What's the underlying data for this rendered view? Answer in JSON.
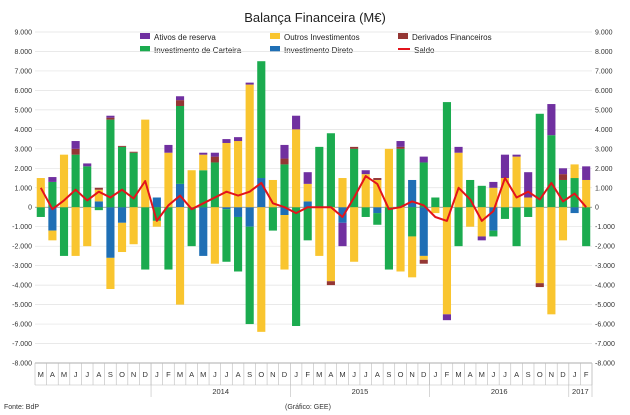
{
  "chart_data": {
    "type": "bar",
    "title": "Balança Financeira (M€)",
    "source": "Fonte: BdP",
    "credit": "(Gráfico: GEE)",
    "ylim": [
      -8000,
      9000
    ],
    "yticks": [
      "-8.000",
      "-7.000",
      "-6.000",
      "-5.000",
      "-4.000",
      "-3.000",
      "-2.000",
      "-1.000",
      "0",
      "1.000",
      "2.000",
      "3.000",
      "4.000",
      "5.000",
      "6.000",
      "7.000",
      "8.000",
      "9.000"
    ],
    "ytick_values": [
      -8000,
      -7000,
      -6000,
      -5000,
      -4000,
      -3000,
      -2000,
      -1000,
      0,
      1000,
      2000,
      3000,
      4000,
      5000,
      6000,
      7000,
      8000,
      9000
    ],
    "months": [
      "M",
      "A",
      "M",
      "J",
      "J",
      "A",
      "S",
      "O",
      "N",
      "D",
      "J",
      "F",
      "M",
      "A",
      "M",
      "J",
      "J",
      "A",
      "S",
      "O",
      "N",
      "D",
      "J",
      "F",
      "M",
      "A",
      "M",
      "J",
      "J",
      "A",
      "S",
      "O",
      "N",
      "D",
      "J",
      "F",
      "M",
      "A",
      "M",
      "J",
      "J",
      "A",
      "S",
      "O",
      "N",
      "D",
      "J",
      "F"
    ],
    "years": [
      {
        "label": "2014",
        "start": 10,
        "end": 21
      },
      {
        "label": "2015",
        "start": 22,
        "end": 33
      },
      {
        "label": "2016",
        "start": 34,
        "end": 45
      },
      {
        "label": "2017",
        "start": 46,
        "end": 47
      }
    ],
    "series": [
      {
        "name": "Ativos de reserva",
        "color": "#7030a0"
      },
      {
        "name": "Outros Investimentos",
        "color": "#f9c52f"
      },
      {
        "name": "Derivados Financeiros",
        "color": "#943634"
      },
      {
        "name": "Investimento de Carteira",
        "color": "#1bab4f"
      },
      {
        "name": "Investimento Direto",
        "color": "#1f6fb5"
      },
      {
        "name": "Saldo",
        "color": "#e3131b"
      }
    ],
    "data": [
      {
        "i": 0,
        "dir": 0,
        "carteira": -500,
        "outros": 1500,
        "deriv": 0,
        "reserva": 0,
        "saldo": 1000
      },
      {
        "i": 1,
        "dir": -1200,
        "carteira": 1300,
        "outros": -500,
        "deriv": 0,
        "reserva": 250,
        "saldo": -100
      },
      {
        "i": 2,
        "dir": 0,
        "carteira": -2500,
        "outros": 2700,
        "deriv": 0,
        "reserva": 0,
        "saldo": 350
      },
      {
        "i": 3,
        "dir": 0,
        "carteira": 2700,
        "outros": -2500,
        "deriv": 300,
        "reserva": 400,
        "saldo": 900
      },
      {
        "i": 4,
        "dir": 0,
        "carteira": 2100,
        "outros": -2000,
        "deriv": 0,
        "reserva": 150,
        "saldo": 350
      },
      {
        "i": 5,
        "dir": 300,
        "carteira": -150,
        "outros": 600,
        "deriv": 100,
        "reserva": 0,
        "saldo": 800
      },
      {
        "i": 6,
        "dir": -2600,
        "carteira": 4500,
        "outros": -1600,
        "deriv": 100,
        "reserva": 100,
        "saldo": 500
      },
      {
        "i": 7,
        "dir": -800,
        "carteira": 3100,
        "outros": -1500,
        "deriv": 50,
        "reserva": 0,
        "saldo": 900
      },
      {
        "i": 8,
        "dir": 0,
        "carteira": 2800,
        "outros": -1900,
        "deriv": 50,
        "reserva": 0,
        "saldo": 450
      },
      {
        "i": 9,
        "dir": 0,
        "carteira": -3200,
        "outros": 4500,
        "deriv": 0,
        "reserva": 0,
        "saldo": 1350
      },
      {
        "i": 10,
        "dir": 500,
        "carteira": -700,
        "outros": -300,
        "deriv": 0,
        "reserva": 0,
        "saldo": -700
      },
      {
        "i": 11,
        "dir": 0,
        "carteira": -3200,
        "outros": 2800,
        "deriv": 0,
        "reserva": 400,
        "saldo": 100
      },
      {
        "i": 12,
        "dir": 1200,
        "carteira": 4000,
        "outros": -5000,
        "deriv": 300,
        "reserva": 200,
        "saldo": 600
      },
      {
        "i": 13,
        "dir": 0,
        "carteira": -2000,
        "outros": 1900,
        "deriv": 0,
        "reserva": 0,
        "saldo": -100
      },
      {
        "i": 14,
        "dir": -2500,
        "carteira": 1900,
        "outros": 800,
        "deriv": 0,
        "reserva": 100,
        "saldo": 200
      },
      {
        "i": 15,
        "dir": 0,
        "carteira": 2300,
        "outros": -2900,
        "deriv": 300,
        "reserva": 200,
        "saldo": 500
      },
      {
        "i": 16,
        "dir": -100,
        "carteira": -2700,
        "outros": 3300,
        "deriv": 0,
        "reserva": 200,
        "saldo": 800
      },
      {
        "i": 17,
        "dir": -500,
        "carteira": -2800,
        "outros": 3400,
        "deriv": 0,
        "reserva": 200,
        "saldo": 600
      },
      {
        "i": 18,
        "dir": -1000,
        "carteira": -5000,
        "outros": 6300,
        "deriv": 0,
        "reserva": 100,
        "saldo": 800
      },
      {
        "i": 19,
        "dir": 1500,
        "carteira": 6000,
        "outros": -6400,
        "deriv": 0,
        "reserva": 0,
        "saldo": 1250
      },
      {
        "i": 20,
        "dir": 0,
        "carteira": -1200,
        "outros": 1400,
        "deriv": 0,
        "reserva": 0,
        "saldo": 200
      },
      {
        "i": 21,
        "dir": -400,
        "carteira": 2200,
        "outros": -2800,
        "deriv": 300,
        "reserva": 700,
        "saldo": 0
      },
      {
        "i": 22,
        "dir": 0,
        "carteira": -6100,
        "outros": 4000,
        "deriv": 0,
        "reserva": 700,
        "saldo": -300
      },
      {
        "i": 23,
        "dir": 300,
        "carteira": -1700,
        "outros": 900,
        "deriv": 0,
        "reserva": 600,
        "saldo": 0
      },
      {
        "i": 24,
        "dir": 0,
        "carteira": 3100,
        "outros": -2500,
        "deriv": 0,
        "reserva": 0,
        "saldo": 0
      },
      {
        "i": 25,
        "dir": 0,
        "carteira": 3800,
        "outros": -3800,
        "deriv": -200,
        "reserva": 0,
        "saldo": 0
      },
      {
        "i": 26,
        "dir": -800,
        "carteira": 0,
        "outros": 1500,
        "deriv": 0,
        "reserva": -1200,
        "saldo": -500
      },
      {
        "i": 27,
        "dir": 0,
        "carteira": 3000,
        "outros": -2800,
        "deriv": 100,
        "reserva": 0,
        "saldo": 500
      },
      {
        "i": 28,
        "dir": 0,
        "carteira": -500,
        "outros": 1700,
        "deriv": 0,
        "reserva": 200,
        "saldo": 1600
      },
      {
        "i": 29,
        "dir": -300,
        "carteira": -600,
        "outros": 1400,
        "deriv": 100,
        "reserva": 0,
        "saldo": 1200
      },
      {
        "i": 30,
        "dir": 0,
        "carteira": -3200,
        "outros": 3000,
        "deriv": 0,
        "reserva": 0,
        "saldo": -100
      },
      {
        "i": 31,
        "dir": 0,
        "carteira": 3000,
        "outros": -3300,
        "deriv": 100,
        "reserva": 300,
        "saldo": 0
      },
      {
        "i": 32,
        "dir": 1400,
        "carteira": -1500,
        "outros": -2100,
        "deriv": 0,
        "reserva": 0,
        "saldo": 300
      },
      {
        "i": 33,
        "dir": -2500,
        "carteira": 2300,
        "outros": -200,
        "deriv": -200,
        "reserva": 300,
        "saldo": 100
      },
      {
        "i": 34,
        "dir": 0,
        "carteira": 500,
        "outros": -300,
        "deriv": 0,
        "reserva": 0,
        "saldo": -500
      },
      {
        "i": 35,
        "dir": 0,
        "carteira": 5400,
        "outros": -5500,
        "deriv": 0,
        "reserva": -300,
        "saldo": -700
      },
      {
        "i": 36,
        "dir": 0,
        "carteira": -2000,
        "outros": 2800,
        "deriv": 0,
        "reserva": 300,
        "saldo": 1000
      },
      {
        "i": 37,
        "dir": 0,
        "carteira": 1400,
        "outros": -1000,
        "deriv": 0,
        "reserva": 0,
        "saldo": 400
      },
      {
        "i": 38,
        "dir": 0,
        "carteira": 1100,
        "outros": -1500,
        "deriv": 0,
        "reserva": -200,
        "saldo": -700
      },
      {
        "i": 39,
        "dir": -1200,
        "carteira": -300,
        "outros": 1000,
        "deriv": 0,
        "reserva": 300,
        "saldo": -200
      },
      {
        "i": 40,
        "dir": 0,
        "carteira": -600,
        "outros": 1500,
        "deriv": 0,
        "reserva": 1200,
        "saldo": 1500
      },
      {
        "i": 41,
        "dir": 0,
        "carteira": -2000,
        "outros": 2600,
        "deriv": 0,
        "reserva": 100,
        "saldo": 500
      },
      {
        "i": 42,
        "dir": 0,
        "carteira": -500,
        "outros": 500,
        "deriv": 0,
        "reserva": 1300,
        "saldo": 800
      },
      {
        "i": 43,
        "dir": 0,
        "carteira": 4800,
        "outros": -3900,
        "deriv": -200,
        "reserva": 0,
        "saldo": 400
      },
      {
        "i": 44,
        "dir": 0,
        "carteira": 3700,
        "outros": -5500,
        "deriv": 0,
        "reserva": 1600,
        "saldo": 1250
      },
      {
        "i": 45,
        "dir": 0,
        "carteira": 1400,
        "outros": -1700,
        "deriv": 300,
        "reserva": 300,
        "saldo": 300
      },
      {
        "i": 46,
        "dir": -300,
        "carteira": 1500,
        "outros": 700,
        "deriv": 0,
        "reserva": 0,
        "saldo": 700
      },
      {
        "i": 47,
        "dir": 0,
        "carteira": -2000,
        "outros": 1400,
        "deriv": 0,
        "reserva": 700,
        "saldo": 0
      }
    ]
  }
}
